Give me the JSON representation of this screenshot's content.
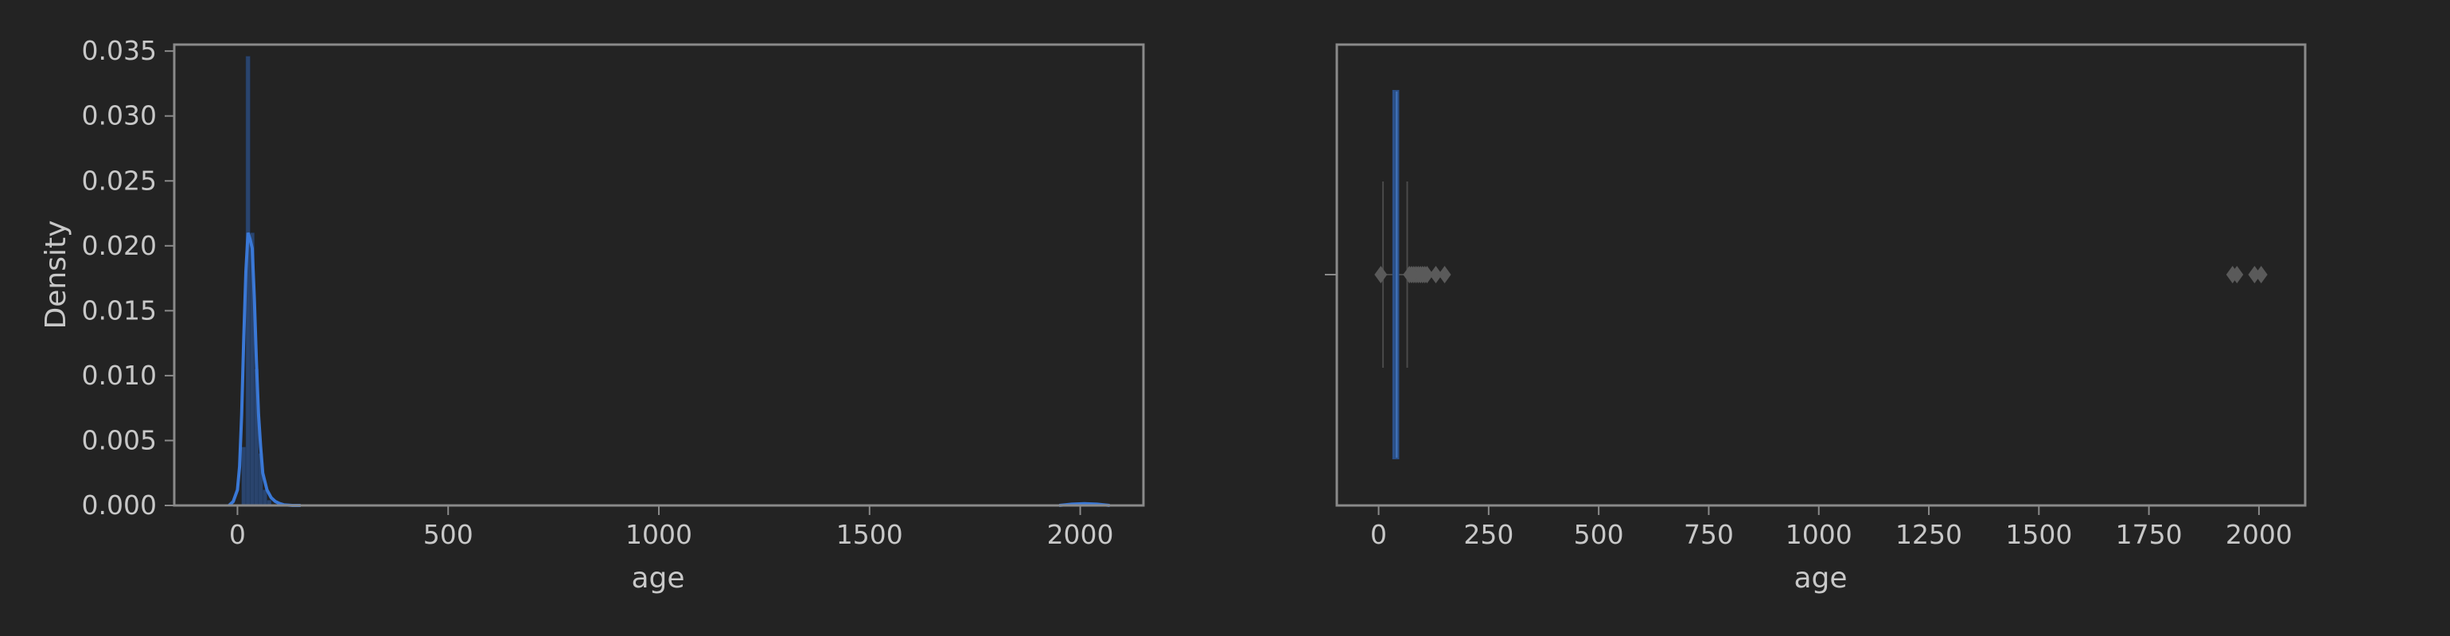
{
  "colors": {
    "background": "#232323",
    "axes_frame": "#8a8a8a",
    "text": "#c8c8c8",
    "accent": "#3a78d6",
    "hist_bar": "#2c4a7a",
    "box_fill": "#3f6fb5",
    "flier": "#5a5a5a"
  },
  "chart_data": [
    {
      "type": "histogram",
      "xlabel": "age",
      "ylabel": "Density",
      "xlim": [
        -150,
        2150
      ],
      "ylim": [
        0,
        0.0355
      ],
      "xticks": [
        0,
        500,
        1000,
        1500,
        2000
      ],
      "xtick_labels": [
        "0",
        "500",
        "1000",
        "1500",
        "2000"
      ],
      "yticks": [
        0,
        0.005,
        0.01,
        0.015,
        0.02,
        0.025,
        0.03,
        0.035
      ],
      "ytick_labels": [
        "0.000",
        "0.005",
        "0.010",
        "0.015",
        "0.020",
        "0.025",
        "0.030",
        "0.035"
      ],
      "bins": [
        {
          "x0": 10,
          "x1": 20,
          "density": 0.0045
        },
        {
          "x0": 20,
          "x1": 30,
          "density": 0.0346
        },
        {
          "x0": 30,
          "x1": 40,
          "density": 0.021
        },
        {
          "x0": 40,
          "x1": 50,
          "density": 0.0105
        },
        {
          "x0": 50,
          "x1": 60,
          "density": 0.004
        },
        {
          "x0": 60,
          "x1": 70,
          "density": 0.0012
        },
        {
          "x0": 70,
          "x1": 80,
          "density": 0.0004
        }
      ],
      "kde": {
        "x": [
          -20,
          -10,
          0,
          5,
          10,
          15,
          20,
          25,
          30,
          35,
          40,
          45,
          50,
          55,
          60,
          70,
          80,
          90,
          100,
          110,
          130,
          150,
          1950,
          1980,
          2010,
          2040,
          2070
        ],
        "y": [
          0,
          0.0003,
          0.0012,
          0.003,
          0.007,
          0.013,
          0.018,
          0.021,
          0.0205,
          0.0198,
          0.016,
          0.011,
          0.007,
          0.0045,
          0.0025,
          0.0012,
          0.0006,
          0.0003,
          0.00015,
          5e-05,
          0,
          0,
          0,
          0.0001,
          0.00014,
          0.0001,
          0
        ]
      }
    },
    {
      "type": "box",
      "xlabel": "age",
      "xlim": [
        -95,
        2105
      ],
      "xticks": [
        0,
        250,
        500,
        750,
        1000,
        1250,
        1500,
        1750,
        2000
      ],
      "xtick_labels": [
        "0",
        "250",
        "500",
        "750",
        "1000",
        "1250",
        "1500",
        "1750",
        "2000"
      ],
      "box": {
        "whislo": 10,
        "q1": 33,
        "med": 37,
        "q3": 45,
        "whishi": 65
      },
      "fliers": [
        5,
        70,
        75,
        80,
        85,
        90,
        95,
        100,
        105,
        110,
        130,
        150,
        1940,
        1950,
        1990,
        2005
      ]
    }
  ]
}
